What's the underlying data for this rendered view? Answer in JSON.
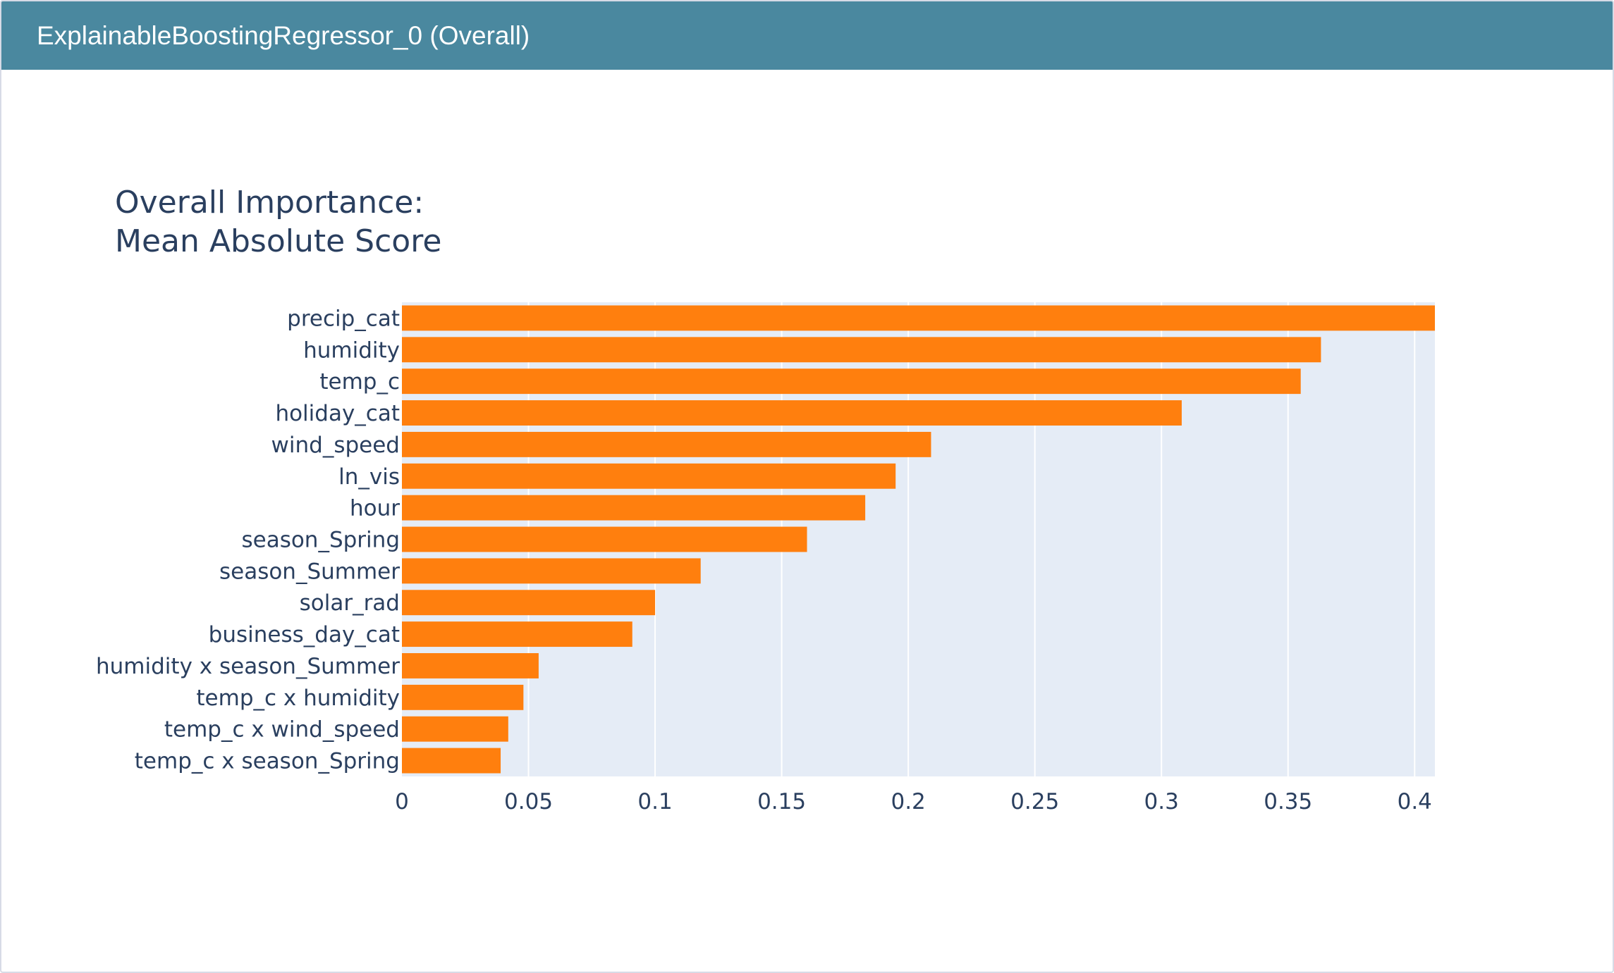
{
  "header": {
    "title": "ExplainableBoostingRegressor_0 (Overall)"
  },
  "colors": {
    "header_bg": "#4a889f",
    "plot_bg": "#e5ecf6",
    "bar": "#ff7f0e",
    "grid": "#ffffff",
    "text": "#2a3f5f"
  },
  "chart_data": {
    "type": "bar",
    "orientation": "horizontal",
    "title_lines": [
      "Overall Importance:",
      "Mean Absolute Score"
    ],
    "categories": [
      "precip_cat",
      "humidity",
      "temp_c",
      "holiday_cat",
      "wind_speed",
      "ln_vis",
      "hour",
      "season_Spring",
      "season_Summer",
      "solar_rad",
      "business_day_cat",
      "humidity x season_Summer",
      "temp_c x humidity",
      "temp_c x wind_speed",
      "temp_c x season_Spring"
    ],
    "values": [
      0.408,
      0.363,
      0.355,
      0.308,
      0.209,
      0.195,
      0.183,
      0.16,
      0.118,
      0.1,
      0.091,
      0.054,
      0.048,
      0.042,
      0.039
    ],
    "xlim": [
      0,
      0.408
    ],
    "xticks": [
      0,
      0.05,
      0.1,
      0.15,
      0.2,
      0.25,
      0.3,
      0.35,
      0.4
    ],
    "xtick_labels": [
      "0",
      "0.05",
      "0.1",
      "0.15",
      "0.2",
      "0.25",
      "0.3",
      "0.35",
      "0.4"
    ],
    "grid": true,
    "legend": false
  }
}
